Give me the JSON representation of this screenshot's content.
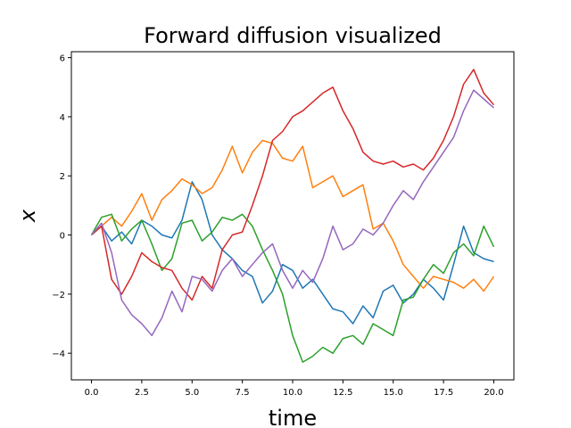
{
  "chart_data": {
    "type": "line",
    "title": "Forward diffusion visualized",
    "xlabel": "time",
    "ylabel": "x",
    "xlim": [
      -1.0,
      21.0
    ],
    "ylim": [
      -4.9,
      6.2
    ],
    "xticks": [
      0.0,
      2.5,
      5.0,
      7.5,
      10.0,
      12.5,
      15.0,
      17.5,
      20.0
    ],
    "xtick_labels": [
      "0.0",
      "2.5",
      "5.0",
      "7.5",
      "10.0",
      "12.5",
      "15.0",
      "17.5",
      "20.0"
    ],
    "yticks": [
      -4,
      -2,
      0,
      2,
      4,
      6
    ],
    "ytick_labels": [
      "−4",
      "−2",
      "0",
      "2",
      "4",
      "6"
    ],
    "grid": false,
    "series": [
      {
        "color": "#1f77b4",
        "x": [
          0,
          0.5,
          1,
          1.5,
          2,
          2.5,
          3,
          3.5,
          4,
          4.5,
          5,
          5.5,
          6,
          6.5,
          7,
          7.5,
          8,
          8.5,
          9,
          9.5,
          10,
          10.5,
          11,
          11.5,
          12,
          12.5,
          13,
          13.5,
          14,
          14.5,
          15,
          15.5,
          16,
          16.5,
          17,
          17.5,
          18,
          18.5,
          19,
          19.5,
          20
        ],
        "values": [
          0,
          0.3,
          -0.2,
          0.1,
          -0.3,
          0.5,
          0.3,
          0.0,
          -0.1,
          0.5,
          1.8,
          1.2,
          0.0,
          -0.5,
          -0.8,
          -1.2,
          -1.4,
          -2.3,
          -1.9,
          -1.0,
          -1.2,
          -1.8,
          -1.5,
          -2.0,
          -2.5,
          -2.6,
          -3.0,
          -2.4,
          -2.8,
          -1.9,
          -1.7,
          -2.3,
          -2.0,
          -1.5,
          -1.8,
          -2.2,
          -1.0,
          0.3,
          -0.6,
          -0.8,
          -0.9
        ]
      },
      {
        "color": "#ff7f0e",
        "x": [
          0,
          0.5,
          1,
          1.5,
          2,
          2.5,
          3,
          3.5,
          4,
          4.5,
          5,
          5.5,
          6,
          6.5,
          7,
          7.5,
          8,
          8.5,
          9,
          9.5,
          10,
          10.5,
          11,
          11.5,
          12,
          12.5,
          13,
          13.5,
          14,
          14.5,
          15,
          15.5,
          16,
          16.5,
          17,
          17.5,
          18,
          18.5,
          19,
          19.5,
          20
        ],
        "values": [
          0,
          0.3,
          0.6,
          0.3,
          0.8,
          1.4,
          0.5,
          1.2,
          1.5,
          1.9,
          1.7,
          1.4,
          1.6,
          2.2,
          3.0,
          2.1,
          2.8,
          3.2,
          3.1,
          2.6,
          2.5,
          3.0,
          1.6,
          1.8,
          2.0,
          1.3,
          1.5,
          1.7,
          0.2,
          0.4,
          -0.2,
          -1.0,
          -1.4,
          -1.8,
          -1.4,
          -1.5,
          -1.6,
          -1.8,
          -1.5,
          -1.9,
          -1.4
        ]
      },
      {
        "color": "#2ca02c",
        "x": [
          0,
          0.5,
          1,
          1.5,
          2,
          2.5,
          3,
          3.5,
          4,
          4.5,
          5,
          5.5,
          6,
          6.5,
          7,
          7.5,
          8,
          8.5,
          9,
          9.5,
          10,
          10.5,
          11,
          11.5,
          12,
          12.5,
          13,
          13.5,
          14,
          14.5,
          15,
          15.5,
          16,
          16.5,
          17,
          17.5,
          18,
          18.5,
          19,
          19.5,
          20
        ],
        "values": [
          0,
          0.6,
          0.7,
          -0.2,
          0.2,
          0.5,
          -0.3,
          -1.2,
          -0.8,
          0.4,
          0.5,
          -0.2,
          0.1,
          0.6,
          0.5,
          0.7,
          0.3,
          -0.5,
          -1.2,
          -2.0,
          -3.4,
          -4.3,
          -4.1,
          -3.8,
          -4.0,
          -3.5,
          -3.4,
          -3.7,
          -3.0,
          -3.2,
          -3.4,
          -2.2,
          -2.1,
          -1.5,
          -1.0,
          -1.3,
          -0.6,
          -0.3,
          -0.7,
          0.3,
          -0.4
        ]
      },
      {
        "color": "#d62728",
        "x": [
          0,
          0.5,
          1,
          1.5,
          2,
          2.5,
          3,
          3.5,
          4,
          4.5,
          5,
          5.5,
          6,
          6.5,
          7,
          7.5,
          8,
          8.5,
          9,
          9.5,
          10,
          10.5,
          11,
          11.5,
          12,
          12.5,
          13,
          13.5,
          14,
          14.5,
          15,
          15.5,
          16,
          16.5,
          17,
          17.5,
          18,
          18.5,
          19,
          19.5,
          20
        ],
        "values": [
          0,
          0.3,
          -1.5,
          -2.0,
          -1.4,
          -0.6,
          -0.9,
          -1.1,
          -1.2,
          -1.8,
          -2.2,
          -1.4,
          -1.8,
          -0.5,
          0.0,
          0.1,
          1.0,
          2.0,
          3.2,
          3.5,
          4.0,
          4.2,
          4.5,
          4.8,
          5.0,
          4.2,
          3.6,
          2.8,
          2.5,
          2.4,
          2.5,
          2.3,
          2.4,
          2.2,
          2.6,
          3.2,
          4.0,
          5.1,
          5.6,
          4.8,
          4.4
        ]
      },
      {
        "color": "#9467bd",
        "x": [
          0,
          0.5,
          1,
          1.5,
          2,
          2.5,
          3,
          3.5,
          4,
          4.5,
          5,
          5.5,
          6,
          6.5,
          7,
          7.5,
          8,
          8.5,
          9,
          9.5,
          10,
          10.5,
          11,
          11.5,
          12,
          12.5,
          13,
          13.5,
          14,
          14.5,
          15,
          15.5,
          16,
          16.5,
          17,
          17.5,
          18,
          18.5,
          19,
          19.5,
          20
        ],
        "values": [
          0,
          0.4,
          -0.6,
          -2.2,
          -2.7,
          -3.0,
          -3.4,
          -2.8,
          -1.9,
          -2.6,
          -1.4,
          -1.5,
          -1.9,
          -1.2,
          -0.8,
          -1.4,
          -1.0,
          -0.6,
          -0.3,
          -1.2,
          -1.8,
          -1.2,
          -1.6,
          -0.8,
          0.3,
          -0.5,
          -0.3,
          0.2,
          0.0,
          0.4,
          1.0,
          1.5,
          1.2,
          1.8,
          2.3,
          2.8,
          3.3,
          4.2,
          4.9,
          4.6,
          4.3
        ]
      }
    ]
  }
}
